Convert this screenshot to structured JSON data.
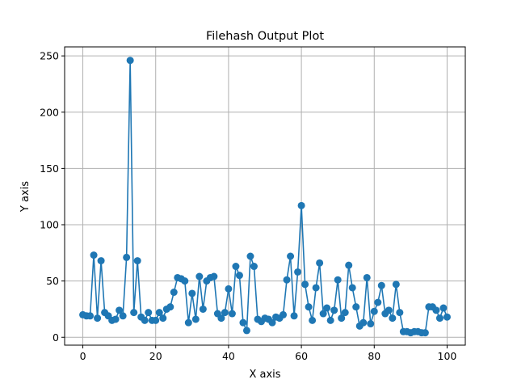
{
  "chart_data": {
    "type": "line",
    "title": "Filehash Output Plot",
    "xlabel": "X axis",
    "ylabel": "Y axis",
    "xlim": [
      -5,
      105
    ],
    "ylim": [
      -7,
      258
    ],
    "xticks": [
      0,
      20,
      40,
      60,
      80,
      100
    ],
    "yticks": [
      0,
      50,
      100,
      150,
      200,
      250
    ],
    "grid": true,
    "marker": "circle",
    "color": "#1f77b4",
    "series": [
      {
        "x": [
          0,
          1,
          2,
          3,
          4,
          5,
          6,
          7,
          8,
          9,
          10,
          11,
          12,
          13,
          14,
          15,
          16,
          17,
          18,
          19,
          20,
          21,
          22,
          23,
          24,
          25,
          26,
          27,
          28,
          29,
          30,
          31,
          32,
          33,
          34,
          35,
          36,
          37,
          38,
          39,
          40,
          41,
          42,
          43,
          44,
          45,
          46,
          47,
          48,
          49,
          50,
          51,
          52,
          53,
          54,
          55,
          56,
          57,
          58,
          59,
          60,
          61,
          62,
          63,
          64,
          65,
          66,
          67,
          68,
          69,
          70,
          71,
          72,
          73,
          74,
          75,
          76,
          77,
          78,
          79,
          80,
          81,
          82,
          83,
          84,
          85,
          86,
          87,
          88,
          89,
          90,
          91,
          92,
          93,
          94,
          95,
          96,
          97,
          98,
          99,
          100
        ],
        "values": [
          20,
          19,
          19,
          73,
          17,
          68,
          22,
          19,
          15,
          16,
          24,
          19,
          71,
          246,
          22,
          68,
          18,
          15,
          22,
          15,
          15,
          22,
          17,
          25,
          27,
          40,
          53,
          52,
          50,
          13,
          39,
          16,
          54,
          25,
          50,
          53,
          54,
          21,
          17,
          22,
          43,
          21,
          63,
          55,
          13,
          6,
          72,
          63,
          16,
          14,
          17,
          16,
          13,
          18,
          17,
          20,
          51,
          72,
          19,
          58,
          117,
          47,
          27,
          15,
          44,
          66,
          21,
          26,
          15,
          24,
          51,
          17,
          22,
          64,
          44,
          27,
          10,
          13,
          53,
          12,
          23,
          31,
          46,
          21,
          24,
          17,
          47,
          22,
          5,
          5,
          4,
          5,
          5,
          4,
          4,
          27,
          27,
          24,
          17,
          26,
          18
        ]
      }
    ]
  }
}
